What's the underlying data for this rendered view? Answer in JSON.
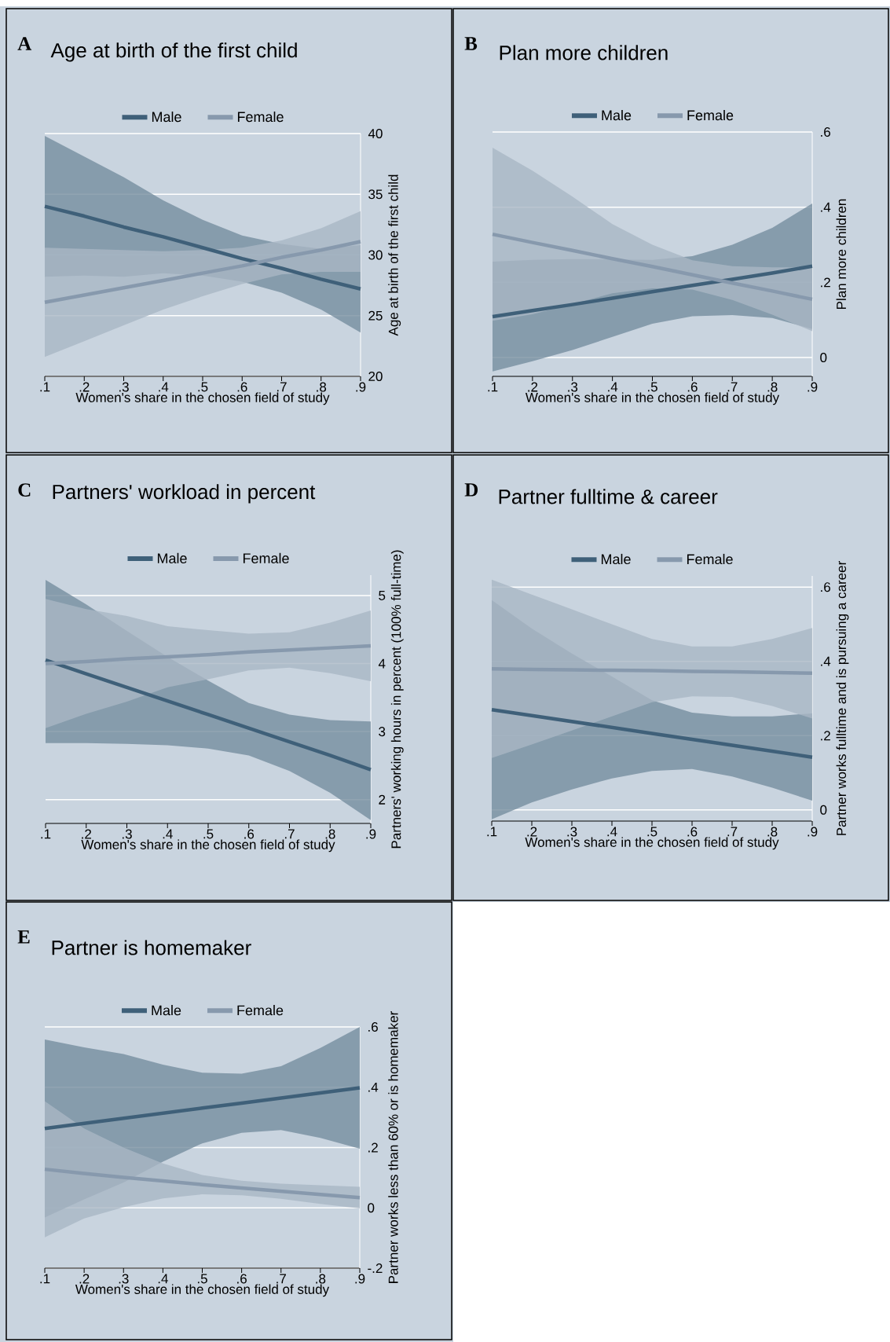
{
  "chart_data": [
    {
      "type": "line",
      "title": "Age at birth of the first child",
      "xlabel": "Women's share in the chosen field of study",
      "ylabel": "Age at birth of the first child",
      "annotations": [
        "A"
      ],
      "x": [
        0.1,
        0.2,
        0.3,
        0.4,
        0.5,
        0.6,
        0.7,
        0.8,
        0.9
      ],
      "xlim": [
        0.1,
        0.9
      ],
      "xticks": [
        {
          "value": 0.1,
          "label": ".1"
        },
        {
          "value": 0.2,
          "label": ".2"
        },
        {
          "value": 0.3,
          "label": ".3"
        },
        {
          "value": 0.4,
          "label": ".4"
        },
        {
          "value": 0.5,
          "label": ".5"
        },
        {
          "value": 0.6,
          "label": ".6"
        },
        {
          "value": 0.7,
          "label": ".7"
        },
        {
          "value": 0.8,
          "label": ".8"
        },
        {
          "value": 0.9,
          "label": ".9"
        }
      ],
      "ylim": [
        20,
        40
      ],
      "yticks": [
        20,
        25,
        30,
        35,
        40
      ],
      "grid": "y",
      "legend": "top",
      "series": [
        {
          "name": "Male",
          "color": "#3f6079",
          "values": [
            34.0,
            33.2,
            32.3,
            31.5,
            30.6,
            29.7,
            28.9,
            28.0,
            27.2
          ],
          "lower": [
            28.2,
            28.3,
            28.2,
            28.5,
            28.3,
            27.8,
            26.9,
            25.5,
            23.6
          ],
          "upper": [
            39.8,
            38.1,
            36.4,
            34.5,
            32.9,
            31.6,
            30.9,
            30.5,
            30.8
          ]
        },
        {
          "name": "Female",
          "color": "#8799ad",
          "values": [
            26.1,
            26.7,
            27.3,
            27.9,
            28.5,
            29.1,
            29.8,
            30.4,
            31.1
          ],
          "lower": [
            21.6,
            22.9,
            24.2,
            25.5,
            26.6,
            27.6,
            28.4,
            28.6,
            28.6
          ],
          "upper": [
            30.6,
            30.5,
            30.4,
            30.3,
            30.4,
            30.6,
            31.2,
            32.2,
            33.6
          ]
        }
      ]
    },
    {
      "type": "line",
      "title": "Plan more children",
      "xlabel": "Women's share in the chosen field of study",
      "ylabel": "Plan more children",
      "annotations": [
        "B"
      ],
      "x": [
        0.1,
        0.2,
        0.3,
        0.4,
        0.5,
        0.6,
        0.7,
        0.8,
        0.9
      ],
      "xlim": [
        0.1,
        0.9
      ],
      "xticks": [
        {
          "value": 0.1,
          "label": ".1"
        },
        {
          "value": 0.2,
          "label": ".2"
        },
        {
          "value": 0.3,
          "label": ".3"
        },
        {
          "value": 0.4,
          "label": ".4"
        },
        {
          "value": 0.5,
          "label": ".5"
        },
        {
          "value": 0.6,
          "label": ".6"
        },
        {
          "value": 0.7,
          "label": ".7"
        },
        {
          "value": 0.8,
          "label": ".8"
        },
        {
          "value": 0.9,
          "label": ".9"
        }
      ],
      "ylim": [
        -0.05,
        0.6
      ],
      "yticks": [
        0,
        {
          "value": 0.2,
          "label": ".2"
        },
        {
          "value": 0.4,
          "label": ".4"
        },
        {
          "value": 0.6,
          "label": ".6"
        }
      ],
      "grid": "y",
      "legend": "top",
      "series": [
        {
          "name": "Male",
          "color": "#3f6079",
          "values": [
            0.109,
            0.125,
            0.141,
            0.158,
            0.175,
            0.192,
            0.208,
            0.225,
            0.243
          ],
          "lower": [
            -0.037,
            -0.01,
            0.02,
            0.055,
            0.09,
            0.11,
            0.113,
            0.105,
            0.076
          ],
          "upper": [
            0.255,
            0.26,
            0.262,
            0.261,
            0.26,
            0.27,
            0.3,
            0.345,
            0.41
          ]
        },
        {
          "name": "Female",
          "color": "#8799ad",
          "values": [
            0.328,
            0.306,
            0.285,
            0.263,
            0.242,
            0.22,
            0.198,
            0.177,
            0.155
          ],
          "lower": [
            0.098,
            0.115,
            0.142,
            0.171,
            0.184,
            0.181,
            0.153,
            0.114,
            0.07
          ],
          "upper": [
            0.558,
            0.497,
            0.428,
            0.355,
            0.3,
            0.259,
            0.243,
            0.24,
            0.24
          ]
        }
      ]
    },
    {
      "type": "line",
      "title": "Partners' workload in percent",
      "xlabel": "Women's share in the chosen field of study",
      "ylabel": "Partners' working hours in percent (100% full-time)",
      "annotations": [
        "C"
      ],
      "x": [
        0.1,
        0.2,
        0.3,
        0.4,
        0.5,
        0.6,
        0.7,
        0.8,
        0.9
      ],
      "xlim": [
        0.1,
        0.9
      ],
      "xticks": [
        {
          "value": 0.1,
          "label": ".1"
        },
        {
          "value": 0.2,
          "label": ".2"
        },
        {
          "value": 0.3,
          "label": ".3"
        },
        {
          "value": 0.4,
          "label": ".4"
        },
        {
          "value": 0.5,
          "label": ".5"
        },
        {
          "value": 0.6,
          "label": ".6"
        },
        {
          "value": 0.7,
          "label": ".7"
        },
        {
          "value": 0.8,
          "label": ".8"
        },
        {
          "value": 0.9,
          "label": ".9"
        }
      ],
      "ylim": [
        1.65,
        5.3
      ],
      "yticks": [
        2,
        3,
        4,
        5
      ],
      "grid": "y",
      "legend": "top",
      "series": [
        {
          "name": "Male",
          "color": "#3f6079",
          "values": [
            4.05,
            3.85,
            3.65,
            3.45,
            3.25,
            3.05,
            2.85,
            2.65,
            2.44
          ],
          "lower": [
            2.83,
            2.83,
            2.82,
            2.8,
            2.75,
            2.65,
            2.42,
            2.1,
            1.7
          ],
          "upper": [
            5.23,
            4.87,
            4.48,
            4.1,
            3.75,
            3.42,
            3.25,
            3.17,
            3.15
          ]
        },
        {
          "name": "Female",
          "color": "#8799ad",
          "values": [
            4.0,
            4.03,
            4.07,
            4.1,
            4.13,
            4.17,
            4.2,
            4.23,
            4.26
          ],
          "lower": [
            3.05,
            3.26,
            3.44,
            3.65,
            3.77,
            3.9,
            3.94,
            3.86,
            3.74
          ],
          "upper": [
            4.95,
            4.8,
            4.7,
            4.55,
            4.49,
            4.44,
            4.46,
            4.6,
            4.78
          ]
        }
      ]
    },
    {
      "type": "line",
      "title": "Partner fulltime & career",
      "xlabel": "Women's share in the chosen field of study",
      "ylabel": "Partner works fulltime and is pursuing a career",
      "annotations": [
        "D"
      ],
      "x": [
        0.1,
        0.2,
        0.3,
        0.4,
        0.5,
        0.6,
        0.7,
        0.8,
        0.9
      ],
      "xlim": [
        0.1,
        0.9
      ],
      "xticks": [
        {
          "value": 0.1,
          "label": ".1"
        },
        {
          "value": 0.2,
          "label": ".2"
        },
        {
          "value": 0.3,
          "label": ".3"
        },
        {
          "value": 0.4,
          "label": ".4"
        },
        {
          "value": 0.5,
          "label": ".5"
        },
        {
          "value": 0.6,
          "label": ".6"
        },
        {
          "value": 0.7,
          "label": ".7"
        },
        {
          "value": 0.8,
          "label": ".8"
        },
        {
          "value": 0.9,
          "label": ".9"
        }
      ],
      "ylim": [
        -0.03,
        0.63
      ],
      "yticks": [
        0,
        {
          "value": 0.2,
          "label": ".2"
        },
        {
          "value": 0.4,
          "label": ".4"
        },
        {
          "value": 0.6,
          "label": ".6"
        }
      ],
      "grid": "y",
      "legend": "top",
      "series": [
        {
          "name": "Male",
          "color": "#3f6079",
          "values": [
            0.27,
            0.254,
            0.238,
            0.222,
            0.206,
            0.19,
            0.174,
            0.158,
            0.142
          ],
          "lower": [
            -0.025,
            0.02,
            0.055,
            0.085,
            0.105,
            0.11,
            0.09,
            0.06,
            0.025
          ],
          "upper": [
            0.565,
            0.488,
            0.421,
            0.359,
            0.295,
            0.262,
            0.252,
            0.252,
            0.26
          ]
        },
        {
          "name": "Female",
          "color": "#8799ad",
          "values": [
            0.38,
            0.378,
            0.377,
            0.376,
            0.375,
            0.373,
            0.372,
            0.37,
            0.368
          ],
          "lower": [
            0.14,
            0.176,
            0.214,
            0.252,
            0.29,
            0.306,
            0.304,
            0.28,
            0.246
          ],
          "upper": [
            0.62,
            0.58,
            0.54,
            0.5,
            0.46,
            0.44,
            0.44,
            0.46,
            0.49
          ]
        }
      ]
    },
    {
      "type": "line",
      "title": "Partner is homemaker",
      "xlabel": "Women's share in the chosen field of study",
      "ylabel": "Partner works less than 60% or is homemaker",
      "annotations": [
        "E"
      ],
      "x": [
        0.1,
        0.2,
        0.3,
        0.4,
        0.5,
        0.6,
        0.7,
        0.8,
        0.9
      ],
      "xlim": [
        0.1,
        0.9
      ],
      "xticks": [
        {
          "value": 0.1,
          "label": ".1"
        },
        {
          "value": 0.2,
          "label": ".2"
        },
        {
          "value": 0.3,
          "label": ".3"
        },
        {
          "value": 0.4,
          "label": ".4"
        },
        {
          "value": 0.5,
          "label": ".5"
        },
        {
          "value": 0.6,
          "label": ".6"
        },
        {
          "value": 0.7,
          "label": ".7"
        },
        {
          "value": 0.8,
          "label": ".8"
        },
        {
          "value": 0.9,
          "label": ".9"
        }
      ],
      "ylim": [
        -0.2,
        0.6
      ],
      "yticks": [
        {
          "value": -0.2,
          "label": "-.2"
        },
        0,
        {
          "value": 0.2,
          "label": ".2"
        },
        {
          "value": 0.4,
          "label": ".4"
        },
        {
          "value": 0.6,
          "label": ".6"
        }
      ],
      "grid": "y",
      "legend": "top",
      "series": [
        {
          "name": "Male",
          "color": "#3f6079",
          "values": [
            0.263,
            0.28,
            0.297,
            0.314,
            0.331,
            0.347,
            0.364,
            0.381,
            0.398
          ],
          "lower": [
            -0.032,
            0.028,
            0.084,
            0.153,
            0.214,
            0.249,
            0.258,
            0.232,
            0.196
          ],
          "upper": [
            0.558,
            0.532,
            0.51,
            0.475,
            0.448,
            0.445,
            0.47,
            0.53,
            0.6
          ]
        },
        {
          "name": "Female",
          "color": "#8799ad",
          "values": [
            0.128,
            0.114,
            0.101,
            0.089,
            0.077,
            0.066,
            0.055,
            0.044,
            0.034
          ],
          "lower": [
            -0.098,
            -0.035,
            0.002,
            0.031,
            0.045,
            0.042,
            0.03,
            0.013,
            -0.002
          ],
          "upper": [
            0.354,
            0.263,
            0.2,
            0.147,
            0.109,
            0.09,
            0.08,
            0.075,
            0.07
          ]
        }
      ]
    }
  ]
}
